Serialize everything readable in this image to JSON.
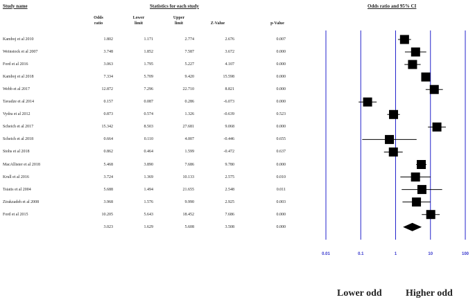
{
  "headers": {
    "study": "Study name",
    "stats": "Statistics for each study",
    "forest": "Odds ratio and 95% CI"
  },
  "columns": {
    "or": [
      "Odds",
      "ratio"
    ],
    "lower": [
      "Lower",
      "limit"
    ],
    "upper": [
      "Upper",
      "limit"
    ],
    "z": "Z-Value",
    "p": "p-Value"
  },
  "legend": {
    "left": "Lower odd",
    "right": "Higher odd"
  },
  "chart_data": {
    "type": "forest",
    "scale": "log",
    "xlim": [
      0.01,
      100
    ],
    "ticks": [
      "0.01",
      "0.1",
      "1",
      "10",
      "100"
    ],
    "tick_values": [
      0.01,
      0.1,
      1,
      10,
      100
    ],
    "line_color": "#2222cc",
    "tick_label_color": "#3333cc",
    "marker_color": "#000000",
    "rows": [
      {
        "study": "Kamboj et al 2010",
        "or": "1.802",
        "lower": "1.171",
        "upper": "2.774",
        "z": "2.676",
        "p": "0.007"
      },
      {
        "study": "Weinstock et al 2007",
        "or": "3.748",
        "lower": "1.852",
        "upper": "7.587",
        "z": "3.672",
        "p": "0.000"
      },
      {
        "study": "Ford et al 2016",
        "or": "3.063",
        "lower": "1.795",
        "upper": "5.227",
        "z": "4.107",
        "p": "0.000"
      },
      {
        "study": "Kamboj et al 2018",
        "or": "7.334",
        "lower": "5.709",
        "upper": "9.420",
        "z": "15.598",
        "p": "0.000"
      },
      {
        "study": "Webb et al 2017",
        "or": "12.872",
        "lower": "7.296",
        "upper": "22.710",
        "z": "8.821",
        "p": "0.000"
      },
      {
        "study": "Tavadze et al 2014",
        "or": "0.157",
        "lower": "0.087",
        "upper": "0.286",
        "z": "-6.073",
        "p": "0.000"
      },
      {
        "study": "Vydra et al 2012",
        "or": "0.873",
        "lower": "0.574",
        "upper": "1.326",
        "z": "-0.639",
        "p": "0.523"
      },
      {
        "study": "Scheich et al 2017",
        "or": "15.342",
        "lower": "8.503",
        "upper": "27.681",
        "z": "9.068",
        "p": "0.000"
      },
      {
        "study": "Scheich et al 2018",
        "or": "0.664",
        "lower": "0.110",
        "upper": "4.007",
        "z": "-0.446",
        "p": "0.655"
      },
      {
        "study": "Stohs et al 2018",
        "or": "0.862",
        "lower": "0.464",
        "upper": "1.599",
        "z": "-0.472",
        "p": "0.637"
      },
      {
        "study": "MacAllister et al 2018",
        "or": "5.468",
        "lower": "3.890",
        "upper": "7.686",
        "z": "9.780",
        "p": "0.000"
      },
      {
        "study": "Krull et al 2016",
        "or": "3.724",
        "lower": "1.369",
        "upper": "10.133",
        "z": "2.575",
        "p": "0.010"
      },
      {
        "study": "Tsiatis et al 2004",
        "or": "5.688",
        "lower": "1.494",
        "upper": "21.655",
        "z": "2.548",
        "p": "0.011"
      },
      {
        "study": "Zirakzadeh et al 2008",
        "or": "3.968",
        "lower": "1.576",
        "upper": "9.990",
        "z": "2.925",
        "p": "0.003"
      },
      {
        "study": "Ford et al 2015",
        "or": "10.205",
        "lower": "5.643",
        "upper": "18.452",
        "z": "7.686",
        "p": "0.000"
      }
    ],
    "summary": {
      "study": "",
      "or": "3.023",
      "lower": "1.629",
      "upper": "5.608",
      "z": "3.508",
      "p": "0.000"
    }
  }
}
